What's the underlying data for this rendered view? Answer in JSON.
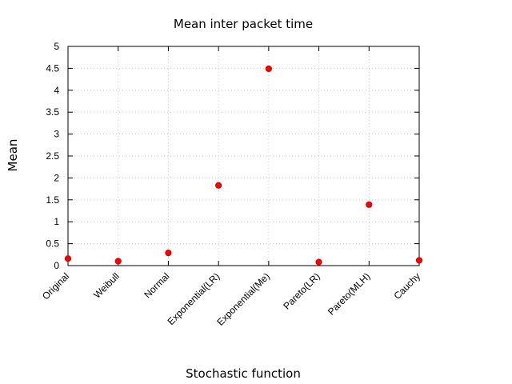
{
  "chart_data": {
    "type": "scatter",
    "title": "Mean inter packet time",
    "xlabel": "Stochastic function",
    "ylabel": "Mean",
    "categories": [
      "Original",
      "Weibull",
      "Normal",
      "Exponential(LR)",
      "Exponential(Me)",
      "Pareto(LR)",
      "Pareto(MLH)",
      "Cauchy"
    ],
    "series": [
      {
        "values": [
          0.16,
          0.1,
          0.29,
          1.83,
          4.49,
          0.08,
          1.39,
          0.12
        ],
        "color": "#ff0000"
      }
    ],
    "ylim": [
      0,
      5
    ],
    "yticks": [
      "0",
      "0.5",
      "1",
      "1.5",
      "2",
      "2.5",
      "3",
      "3.5",
      "4",
      "4.5",
      "5"
    ],
    "ytick_values": [
      0,
      0.5,
      1,
      1.5,
      2,
      2.5,
      3,
      3.5,
      4,
      4.5,
      5
    ],
    "grid": true,
    "legend": "none"
  }
}
